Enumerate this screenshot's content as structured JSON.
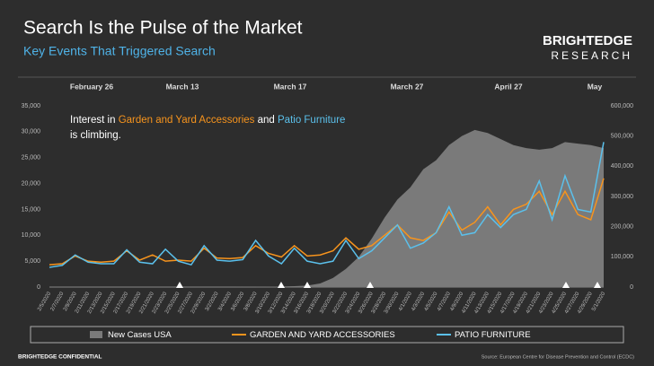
{
  "header": {
    "title": "Search Is the Pulse of the Market",
    "subtitle": "Key Events That Triggered Search",
    "logo_top": "BRIGHTEDGE",
    "logo_bottom": "RESEARCH"
  },
  "events": [
    "February 26",
    "March 13",
    "March 17",
    "March 27",
    "April 27",
    "May"
  ],
  "annotation": {
    "parts": [
      "Interest in ",
      "Garden and Yard Accessories",
      " and ",
      "Patio Furniture",
      " is climbing."
    ]
  },
  "chart_data": {
    "type": "line",
    "categories": [
      "2/5/2020",
      "2/7/2020",
      "2/9/2020",
      "2/11/2020",
      "2/13/2020",
      "2/15/2020",
      "2/17/2020",
      "2/19/2020",
      "2/21/2020",
      "2/23/2020",
      "2/25/2020",
      "2/27/2020",
      "2/29/2020",
      "3/2/2020",
      "3/4/2020",
      "3/6/2020",
      "3/8/2020",
      "3/10/2020",
      "3/12/2020",
      "3/14/2020",
      "3/16/2020",
      "3/18/2020",
      "3/20/2020",
      "3/22/2020",
      "3/24/2020",
      "3/26/2020",
      "3/28/2020",
      "3/30/2020",
      "4/1/2020",
      "4/3/2020",
      "4/5/2020",
      "4/7/2020",
      "4/9/2020",
      "4/11/2020",
      "4/13/2020",
      "4/15/2020",
      "4/17/2020",
      "4/19/2020",
      "4/21/2020",
      "4/23/2020",
      "4/25/2020",
      "4/27/2020",
      "4/29/2020",
      "5/1/2020"
    ],
    "series": [
      {
        "name": "New Cases USA",
        "type": "area",
        "axis": "y2",
        "color": "#7a7a7a",
        "values": [
          0,
          0,
          0,
          0,
          0,
          0,
          0,
          0,
          0,
          0,
          0,
          0,
          0,
          0,
          100,
          300,
          600,
          1000,
          2000,
          3000,
          5000,
          12000,
          30000,
          60000,
          100000,
          160000,
          230000,
          290000,
          330000,
          390000,
          420000,
          470000,
          500000,
          520000,
          510000,
          490000,
          470000,
          460000,
          455000,
          460000,
          480000,
          475000,
          470000,
          460000
        ]
      },
      {
        "name": "GARDEN AND YARD ACCESSORIES",
        "color": "#f7941d",
        "values": [
          4300,
          4500,
          6000,
          5000,
          4800,
          5000,
          7000,
          5200,
          6200,
          5000,
          5200,
          5000,
          7500,
          5600,
          5500,
          5700,
          8000,
          6500,
          5800,
          8000,
          6000,
          6200,
          7000,
          9500,
          7300,
          8000,
          10000,
          12000,
          9500,
          9000,
          10500,
          14500,
          11000,
          12500,
          15500,
          12000,
          15000,
          16000,
          18500,
          14000,
          18500,
          14000,
          13000,
          21000
        ]
      },
      {
        "name": "PATIO FURNITURE",
        "color": "#5bc0eb",
        "values": [
          3800,
          4200,
          6200,
          4800,
          4500,
          4500,
          7200,
          4800,
          4500,
          7300,
          5000,
          4300,
          8000,
          5200,
          5000,
          5300,
          9000,
          6000,
          4500,
          7500,
          5000,
          4500,
          5000,
          9000,
          5500,
          7000,
          9500,
          12000,
          7500,
          8500,
          10500,
          15500,
          10000,
          10500,
          14000,
          11500,
          14000,
          15000,
          20500,
          13000,
          21500,
          15000,
          14500,
          28000
        ]
      }
    ],
    "ylim": [
      0,
      35000
    ],
    "yticks": [
      0,
      {
        "value": 5000,
        "label": "5,000"
      },
      {
        "value": 10000,
        "label": "10,000"
      },
      {
        "value": 15000,
        "label": "15,000"
      },
      {
        "value": 20000,
        "label": "20,000"
      },
      {
        "value": 25000,
        "label": "25,000"
      },
      {
        "value": 30000,
        "label": "30,000"
      },
      {
        "value": 35000,
        "label": "35,000"
      }
    ],
    "y2lim": [
      0,
      600000
    ],
    "y2ticks": [
      0,
      {
        "value": 100000,
        "label": "100,000"
      },
      {
        "value": 200000,
        "label": "200,000"
      },
      {
        "value": 300000,
        "label": "300,000"
      },
      {
        "value": 400000,
        "label": "400,000"
      },
      {
        "value": 500000,
        "label": "500,000"
      },
      {
        "value": 600000,
        "label": "600,000"
      }
    ]
  },
  "footer": {
    "left": "BRIGHTEDGE CONFIDENTIAL",
    "right": "Source: European Centre for Disease Prevention and Control (ECDC)"
  }
}
